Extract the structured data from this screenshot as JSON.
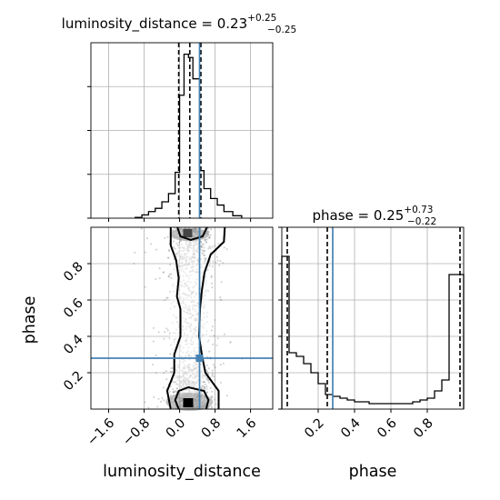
{
  "chart_data": {
    "type": "corner",
    "parameters": [
      "luminosity_distance",
      "phase"
    ],
    "truth": {
      "luminosity_distance": 0.45,
      "phase": 0.28
    },
    "panels": {
      "luminosity_distance_hist": {
        "type": "bar",
        "title": "luminosity_distance",
        "title_value": "0.23",
        "title_plus": "+0.25",
        "title_minus": "−0.25",
        "xlim": [
          -2.0,
          2.1
        ],
        "bin_edges": [
          -1.0,
          -0.85,
          -0.7,
          -0.55,
          -0.4,
          -0.25,
          -0.1,
          0.0,
          0.1,
          0.2,
          0.3,
          0.45,
          0.55,
          0.7,
          0.85,
          1.0,
          1.2,
          1.4
        ],
        "counts": [
          0.005,
          0.02,
          0.04,
          0.06,
          0.1,
          0.15,
          0.28,
          0.75,
          1.0,
          0.98,
          0.85,
          0.29,
          0.18,
          0.12,
          0.08,
          0.04,
          0.015
        ],
        "quantile_lines": [
          -0.02,
          0.23,
          0.48
        ],
        "ylim": [
          0,
          1.07
        ]
      },
      "phase_hist": {
        "type": "bar",
        "title": "phase",
        "title_value": "0.25",
        "title_plus": "+0.73",
        "title_minus": "−0.22",
        "xlim": [
          0.0,
          1.0
        ],
        "bin_edges": [
          0.0,
          0.04,
          0.08,
          0.12,
          0.16,
          0.2,
          0.24,
          0.28,
          0.32,
          0.36,
          0.4,
          0.44,
          0.48,
          0.52,
          0.56,
          0.6,
          0.64,
          0.68,
          0.72,
          0.76,
          0.8,
          0.84,
          0.88,
          0.92,
          0.96,
          1.0
        ],
        "counts": [
          0.84,
          0.31,
          0.29,
          0.25,
          0.2,
          0.14,
          0.08,
          0.07,
          0.06,
          0.05,
          0.04,
          0.04,
          0.03,
          0.03,
          0.03,
          0.03,
          0.03,
          0.03,
          0.04,
          0.05,
          0.06,
          0.1,
          0.16,
          0.74,
          0.74
        ],
        "quantile_lines": [
          0.03,
          0.25,
          0.98
        ],
        "ylim": [
          0,
          1.0
        ]
      },
      "joint": {
        "type": "scatter",
        "xlim": [
          -2.0,
          2.1
        ],
        "ylim": [
          0.0,
          1.0
        ],
        "contour_levels": 2
      }
    },
    "x_ticks_luminosity_distance": [
      "−1.6",
      "−0.8",
      "0.0",
      "0.8",
      "1.6"
    ],
    "x_tick_values_luminosity_distance": [
      -1.6,
      -0.8,
      0.0,
      0.8,
      1.6
    ],
    "phase_ticks": [
      "0.2",
      "0.4",
      "0.6",
      "0.8"
    ],
    "phase_tick_values": [
      0.2,
      0.4,
      0.6,
      0.8
    ],
    "xlabel": "luminosity_distance",
    "ylabel": "phase",
    "xlabel_right": "phase",
    "grid": true,
    "colors": {
      "truth": "#4682b4",
      "hist": "#000000",
      "points": "#9a9a9a",
      "grid": "#b0b0b0"
    }
  }
}
